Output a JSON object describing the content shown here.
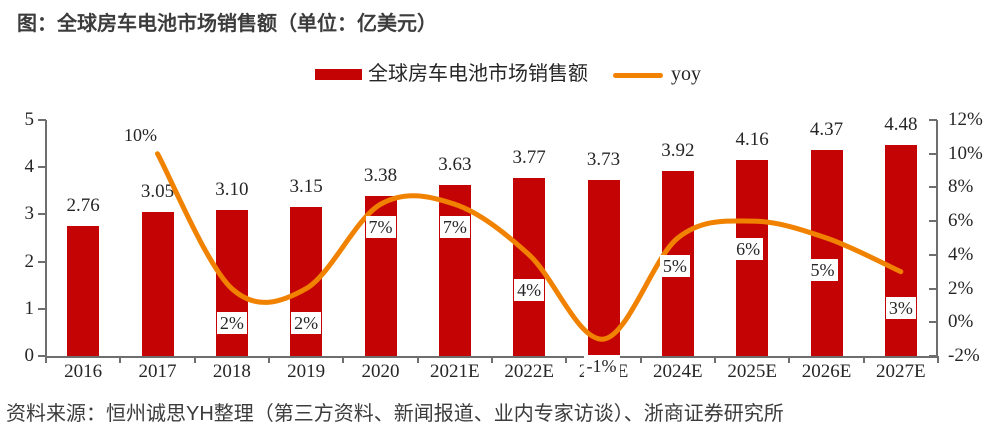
{
  "title": "图：全球房车电池市场销售额（单位：亿美元）",
  "source_note": "资料来源：恒州诚思YH整理（第三方资料、新闻报道、业内专家访谈）、浙商证券研究所",
  "colors": {
    "bar": "#C40404",
    "line": "#F08200",
    "axis": "#6E6E6E",
    "text": "#262626",
    "heading": "#3C3C3C"
  },
  "legend": [
    {
      "label": "全球房车电池市场销售额",
      "marker": "bar-swatch",
      "color": "#C40404"
    },
    {
      "label": "yoy",
      "marker": "line-swatch",
      "color": "#F08200"
    }
  ],
  "chart_data": {
    "type": "bar",
    "title": "全球房车电池市场销售额（单位：亿美元）",
    "categories": [
      "2016",
      "2017",
      "2018",
      "2019",
      "2020",
      "2021E",
      "2022E",
      "2023E",
      "2024E",
      "2025E",
      "2026E",
      "2027E"
    ],
    "series": [
      {
        "name": "全球房车电池市场销售额",
        "type": "bar",
        "axis": "left",
        "values": [
          2.76,
          3.05,
          3.1,
          3.15,
          3.38,
          3.63,
          3.77,
          3.73,
          3.92,
          4.16,
          4.37,
          4.48
        ],
        "data_labels": [
          "2.76",
          "3.05",
          "3.10",
          "3.15",
          "3.38",
          "3.63",
          "3.77",
          "3.73",
          "3.92",
          "4.16",
          "4.37",
          "4.48"
        ]
      },
      {
        "name": "yoy",
        "type": "line",
        "axis": "right",
        "smooth": true,
        "values": [
          null,
          10,
          2,
          2,
          7,
          7,
          4,
          -1,
          5,
          6,
          5,
          3
        ],
        "data_labels": [
          null,
          "10%",
          "2%",
          "2%",
          "7%",
          "7%",
          "4%",
          "-1%",
          "5%",
          "6%",
          "5%",
          "3%"
        ],
        "label_offsets": [
          null,
          [
            -17,
            -19
          ],
          [
            0,
            34
          ],
          [
            0,
            34
          ],
          [
            0,
            23
          ],
          [
            0,
            23
          ],
          [
            0,
            35
          ],
          [
            -2,
            27
          ],
          [
            -3,
            28
          ],
          [
            -4,
            28
          ],
          [
            -4,
            32
          ],
          [
            0,
            36
          ]
        ]
      }
    ],
    "left_axis": {
      "min": 0,
      "max": 5,
      "tick_values": [
        0,
        1,
        2,
        3,
        4,
        5
      ],
      "tick_labels": [
        "0",
        "1",
        "2",
        "3",
        "4",
        "5"
      ]
    },
    "right_axis": {
      "min": -2,
      "max": 12,
      "tick_values": [
        -2,
        0,
        2,
        4,
        6,
        8,
        10,
        12
      ],
      "tick_labels": [
        "-2%",
        "0%",
        "2%",
        "4%",
        "6%",
        "8%",
        "10%",
        "12%"
      ]
    },
    "grid": false,
    "legend_position": "top"
  }
}
